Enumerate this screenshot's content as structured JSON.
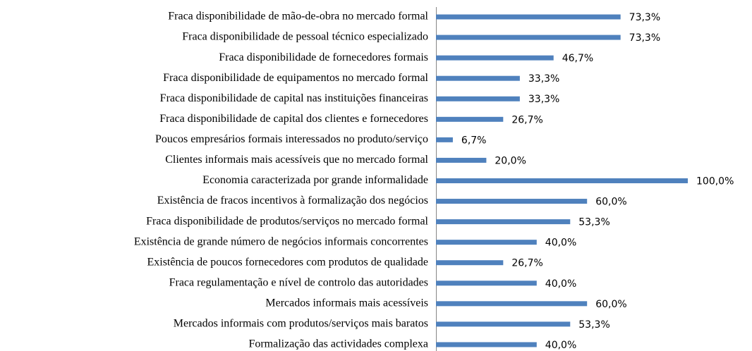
{
  "chart_data": {
    "type": "barh",
    "categories": [
      "Fraca disponibilidade de mão-de-obra no mercado formal",
      "Fraca disponibilidade de pessoal técnico especializado",
      "Fraca disponibilidade de fornecedores formais",
      "Fraca disponibilidade de equipamentos no mercado formal",
      "Fraca disponibilidade de capital nas instituições financeiras",
      "Fraca disponibilidade de capital dos clientes e fornecedores",
      "Poucos empresários formais interessados no produto/serviço",
      "Clientes informais mais acessíveis que no mercado formal",
      "Economia caracterizada por grande informalidade",
      "Existência de fracos incentivos à formalização dos negócios",
      "Fraca disponibilidade de produtos/serviços no mercado formal",
      "Existência de grande número de negócios informais concorrentes",
      "Existência de poucos fornecedores com produtos de qualidade",
      "Fraca regulamentação e nível de controlo das autoridades",
      "Mercados informais mais acessíveis",
      "Mercados informais com produtos/serviços mais baratos",
      "Formalização das actividades complexa"
    ],
    "values": [
      73.3,
      73.3,
      46.7,
      33.3,
      33.3,
      26.7,
      6.7,
      20.0,
      100.0,
      60.0,
      53.3,
      40.0,
      26.7,
      40.0,
      60.0,
      53.3,
      40.0
    ],
    "value_labels": [
      "73,3%",
      "73,3%",
      "46,7%",
      "33,3%",
      "33,3%",
      "26,7%",
      "6,7%",
      "20,0%",
      "100,0%",
      "60,0%",
      "53,3%",
      "40,0%",
      "26,7%",
      "40,0%",
      "60,0%",
      "53,3%",
      "40,0%"
    ],
    "color": "#4f81bd",
    "xlim": [
      0,
      100
    ]
  }
}
